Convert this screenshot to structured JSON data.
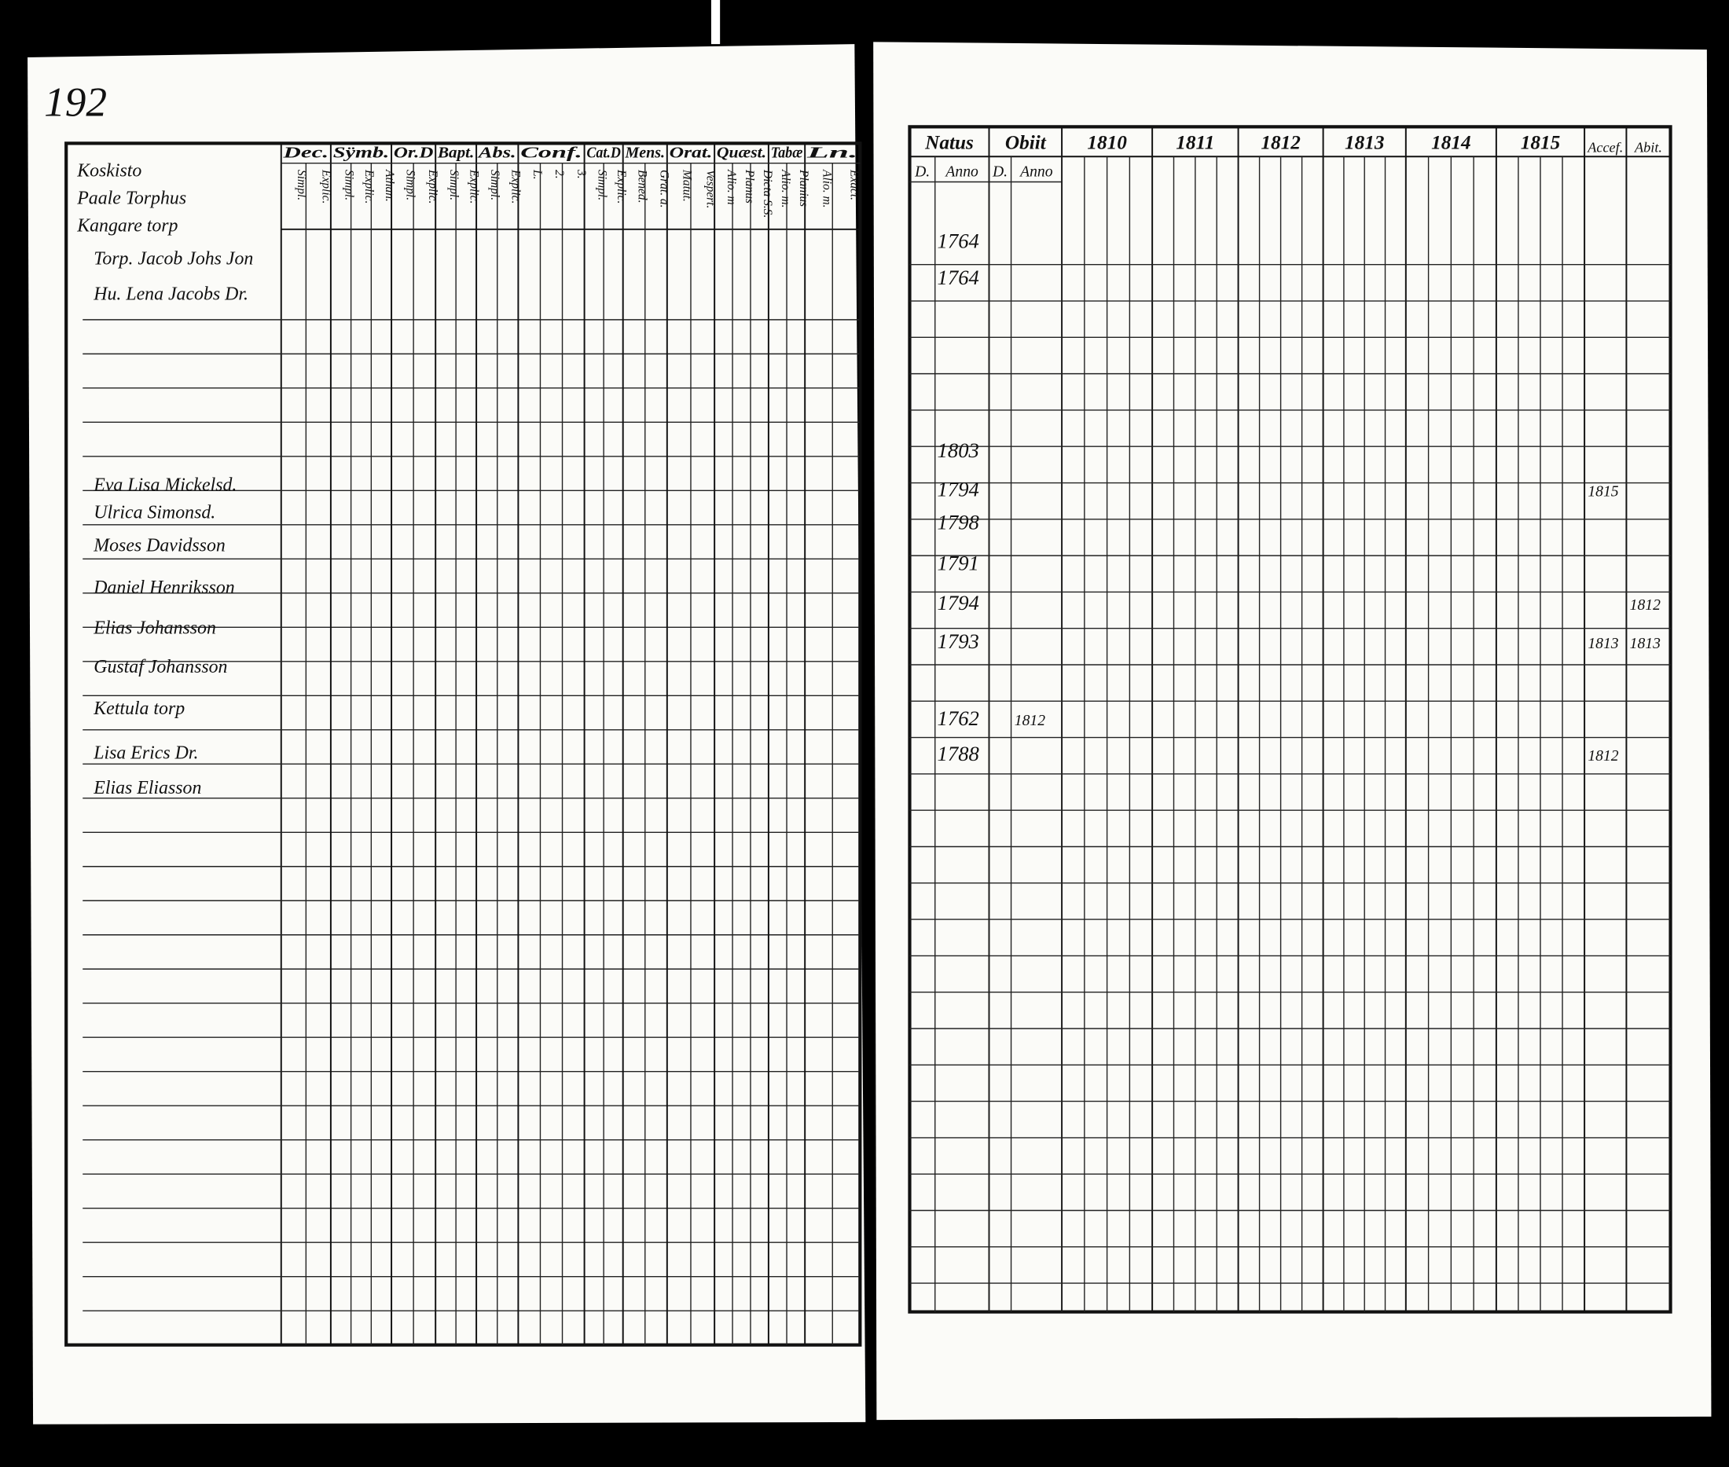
{
  "page_number": "192",
  "left_page": {
    "place": [
      "Koskisto",
      "Paale Torphus",
      "Kangare torp"
    ],
    "headers": [
      "Dec.",
      "Sÿmb.",
      "Or.D",
      "Bapt.",
      "Abs.",
      "Conf.",
      "Cat.D",
      "Mens.",
      "Orat.",
      "Quæst.",
      "Tabæ",
      "Ln."
    ],
    "subheaders": [
      [
        "Simpl.",
        "Explic."
      ],
      [
        "Simpl.",
        "Explic.",
        "Athan."
      ],
      [
        "Simpl.",
        "Explic."
      ],
      [
        "Simpl.",
        "Explic."
      ],
      [
        "Simpl.",
        "Explic."
      ],
      [
        "L.",
        "2.",
        "3."
      ],
      [
        "Simpl.",
        "Explic."
      ],
      [
        "Bened.",
        "Grat. a."
      ],
      [
        "Matut.",
        "Vespert."
      ],
      [
        "Alio. m",
        "Planus",
        "Dicta S.S."
      ],
      [
        "Alio. m.",
        "Planius"
      ],
      [
        "Alio. m.",
        "Exact."
      ]
    ],
    "names": [
      "Torp. Jacob Johs Jon",
      "Hu. Lena Jacobs Dr.",
      "Eva Lisa Mickelsd.",
      "Ulrica Simonsd.",
      "Moses Davidsson",
      "Daniel Henriksson",
      "Elias Johansson",
      "Gustaf Johansson",
      "Kettula torp",
      "Lisa Erics Dr.",
      "Elias Eliasson"
    ]
  },
  "right_page": {
    "headers": [
      "Natus",
      "Obiit"
    ],
    "subheaders": [
      "D.",
      "Anno",
      "D.",
      "Anno"
    ],
    "years": [
      "1810",
      "1811",
      "1812",
      "1813",
      "1814",
      "1815"
    ],
    "extra": [
      "Accef.",
      "Abit."
    ],
    "rows": [
      {
        "anno": 1764
      },
      {
        "anno": 1764
      },
      {
        "anno": 1803
      },
      {
        "anno": 1794,
        "accef": "1815"
      },
      {
        "anno": 1798
      },
      {
        "anno": 1791
      },
      {
        "anno": 1794,
        "abit": "1812"
      },
      {
        "anno": 1793,
        "accef": "1813",
        "abit": "1813"
      },
      {
        "anno": 1762,
        "obiit": "1812"
      },
      {
        "anno": 1788,
        "accef": "1812"
      }
    ]
  }
}
